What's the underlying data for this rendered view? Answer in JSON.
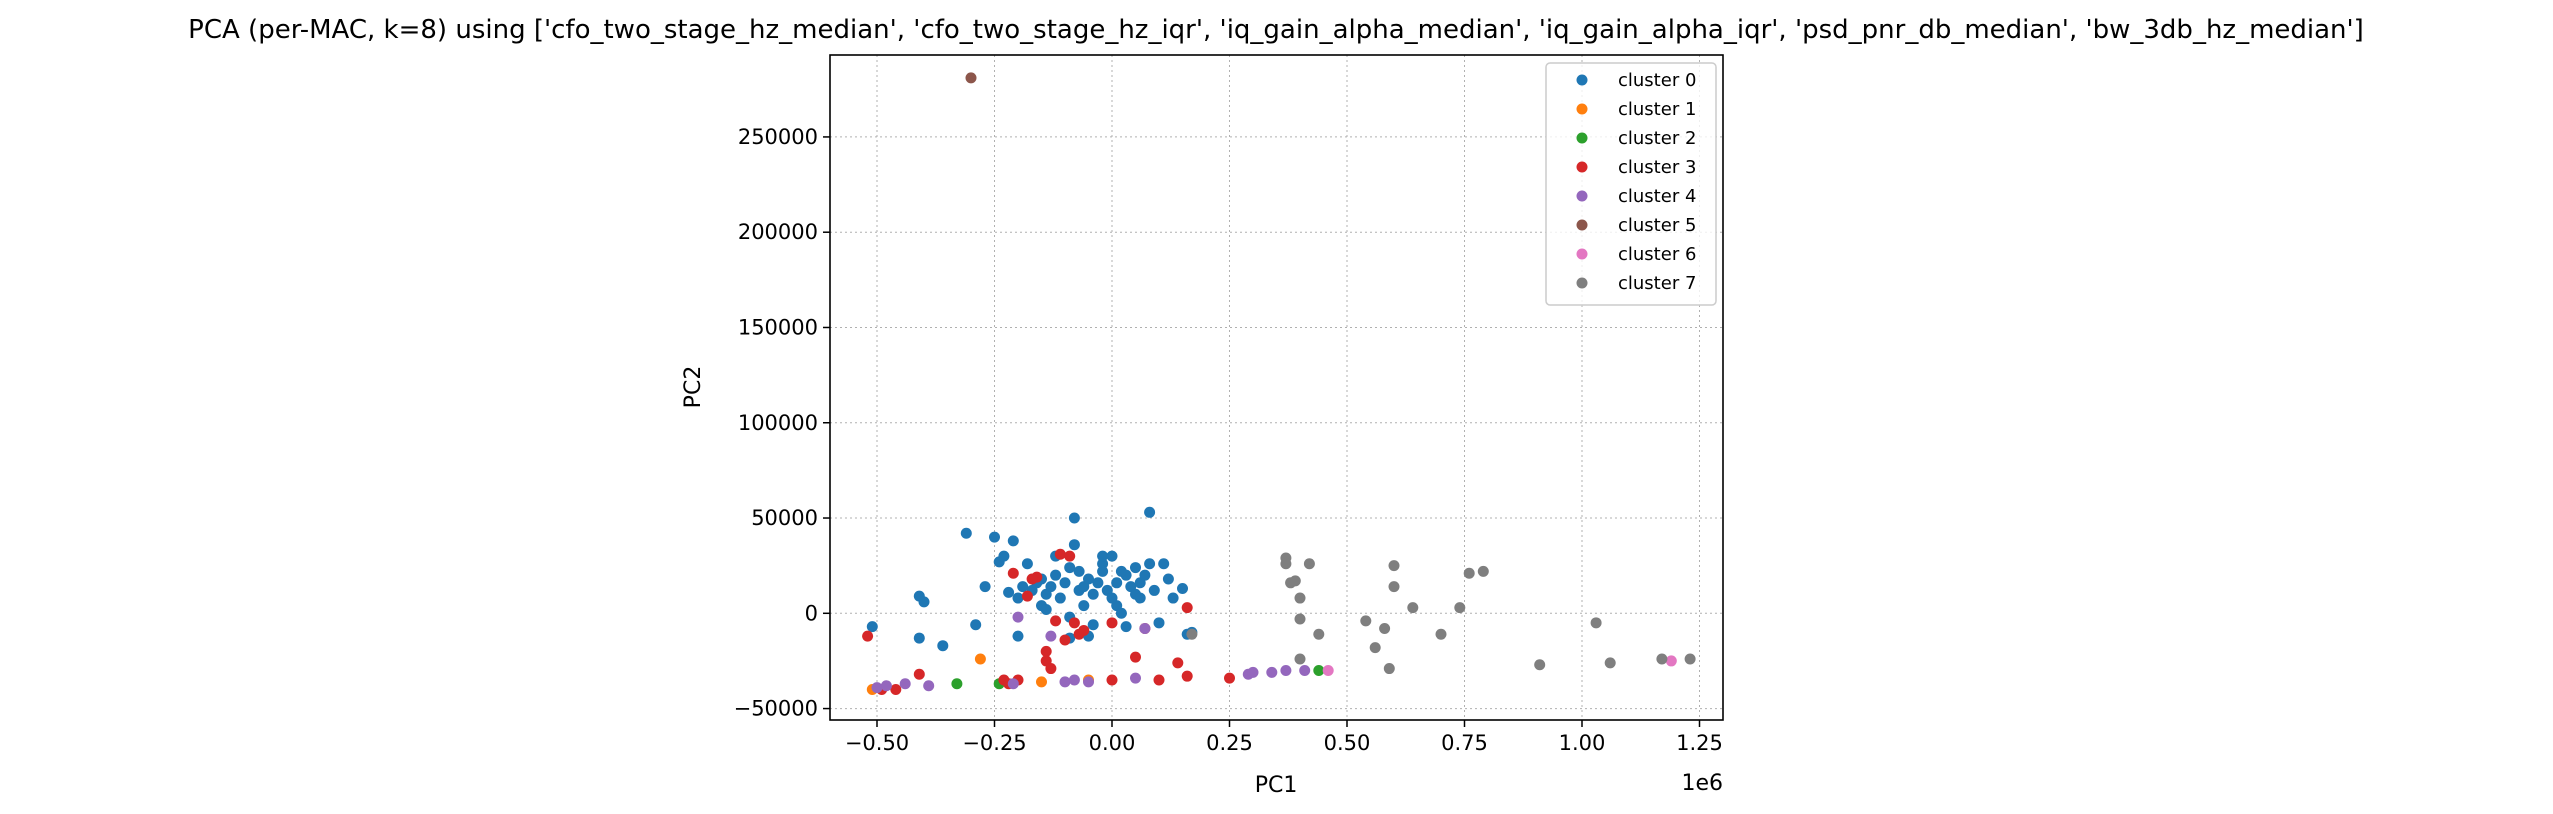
{
  "colors": {
    "cluster_0": "#1f77b4",
    "cluster_1": "#ff7f0e",
    "cluster_2": "#2ca02c",
    "cluster_3": "#d62728",
    "cluster_4": "#9467bd",
    "cluster_5": "#8c564b",
    "cluster_6": "#e377c2",
    "cluster_7": "#7f7f7f"
  },
  "chart_data": {
    "type": "scatter",
    "title": "PCA (per-MAC, k=8) using ['cfo_two_stage_hz_median', 'cfo_two_stage_hz_iqr', 'iq_gain_alpha_median', 'iq_gain_alpha_iqr', 'psd_pnr_db_median', 'bw_3db_hz_median']",
    "xlabel": "PC1",
    "ylabel": "PC2",
    "x_offset_text": "1e6",
    "xlim": [
      -0.6,
      1.3
    ],
    "ylim": [
      -56000,
      293000
    ],
    "xticks": [
      -0.5,
      -0.25,
      0.0,
      0.25,
      0.5,
      0.75,
      1.0,
      1.25
    ],
    "xtick_labels": [
      "−0.50",
      "−0.25",
      "0.00",
      "0.25",
      "0.50",
      "0.75",
      "1.00",
      "1.25"
    ],
    "yticks": [
      -50000,
      0,
      50000,
      100000,
      150000,
      200000,
      250000
    ],
    "ytick_labels": [
      "−50000",
      "0",
      "50000",
      "100000",
      "150000",
      "200000",
      "250000"
    ],
    "grid": true,
    "legend_position": "top-right",
    "series": [
      {
        "name": "cluster 0",
        "points": [
          [
            -0.51,
            -7000
          ],
          [
            -0.41,
            9000
          ],
          [
            -0.4,
            6000
          ],
          [
            -0.41,
            -13000
          ],
          [
            -0.36,
            -17000
          ],
          [
            -0.31,
            42000
          ],
          [
            -0.29,
            -6000
          ],
          [
            -0.27,
            14000
          ],
          [
            -0.25,
            40000
          ],
          [
            -0.24,
            27000
          ],
          [
            -0.23,
            30000
          ],
          [
            -0.22,
            11000
          ],
          [
            -0.21,
            38000
          ],
          [
            -0.2,
            8000
          ],
          [
            -0.19,
            14000
          ],
          [
            -0.18,
            26000
          ],
          [
            -0.17,
            12000
          ],
          [
            -0.16,
            16000
          ],
          [
            -0.15,
            18000
          ],
          [
            -0.15,
            4000
          ],
          [
            -0.14,
            10000
          ],
          [
            -0.13,
            14000
          ],
          [
            -0.12,
            30000
          ],
          [
            -0.12,
            20000
          ],
          [
            -0.11,
            8000
          ],
          [
            -0.1,
            16000
          ],
          [
            -0.09,
            24000
          ],
          [
            -0.09,
            -2000
          ],
          [
            -0.08,
            36000
          ],
          [
            -0.08,
            50000
          ],
          [
            -0.07,
            12000
          ],
          [
            -0.07,
            22000
          ],
          [
            -0.06,
            14000
          ],
          [
            -0.06,
            4000
          ],
          [
            -0.05,
            18000
          ],
          [
            -0.04,
            10000
          ],
          [
            -0.04,
            -6000
          ],
          [
            -0.03,
            16000
          ],
          [
            -0.02,
            26000
          ],
          [
            -0.02,
            22000
          ],
          [
            -0.01,
            12000
          ],
          [
            0.0,
            30000
          ],
          [
            0.01,
            16000
          ],
          [
            0.01,
            4000
          ],
          [
            0.02,
            0
          ],
          [
            0.03,
            20000
          ],
          [
            0.03,
            -7000
          ],
          [
            0.04,
            14000
          ],
          [
            0.05,
            24000
          ],
          [
            0.05,
            10000
          ],
          [
            0.06,
            16000
          ],
          [
            0.07,
            20000
          ],
          [
            0.08,
            53000
          ],
          [
            0.08,
            26000
          ],
          [
            0.09,
            12000
          ],
          [
            0.1,
            -5000
          ],
          [
            0.11,
            26000
          ],
          [
            0.12,
            18000
          ],
          [
            0.13,
            8000
          ],
          [
            0.15,
            13000
          ],
          [
            0.16,
            -11000
          ],
          [
            0.17,
            -10000
          ],
          [
            -0.09,
            -13000
          ],
          [
            -0.05,
            -12000
          ],
          [
            -0.02,
            30000
          ],
          [
            0.0,
            8000
          ],
          [
            0.02,
            22000
          ],
          [
            0.06,
            8000
          ],
          [
            -0.14,
            2000
          ],
          [
            -0.2,
            -12000
          ]
        ]
      },
      {
        "name": "cluster 1",
        "points": [
          [
            -0.51,
            -40000
          ],
          [
            -0.28,
            -24000
          ],
          [
            -0.15,
            -36000
          ],
          [
            -0.05,
            -35000
          ]
        ]
      },
      {
        "name": "cluster 2",
        "points": [
          [
            -0.33,
            -37000
          ],
          [
            -0.24,
            -37000
          ],
          [
            0.44,
            -30000
          ]
        ]
      },
      {
        "name": "cluster 3",
        "points": [
          [
            -0.52,
            -12000
          ],
          [
            -0.49,
            -40000
          ],
          [
            -0.46,
            -40000
          ],
          [
            -0.41,
            -32000
          ],
          [
            -0.23,
            -35000
          ],
          [
            -0.22,
            -37000
          ],
          [
            -0.21,
            21000
          ],
          [
            -0.2,
            -35000
          ],
          [
            -0.18,
            9000
          ],
          [
            -0.16,
            19000
          ],
          [
            -0.14,
            -20000
          ],
          [
            -0.14,
            -25000
          ],
          [
            -0.13,
            -29000
          ],
          [
            -0.12,
            -4000
          ],
          [
            -0.11,
            31000
          ],
          [
            -0.1,
            -14000
          ],
          [
            -0.09,
            30000
          ],
          [
            -0.08,
            -5000
          ],
          [
            -0.07,
            -11000
          ],
          [
            -0.06,
            -9000
          ],
          [
            0.0,
            -35000
          ],
          [
            0.0,
            -5000
          ],
          [
            0.05,
            -23000
          ],
          [
            0.07,
            -8000
          ],
          [
            0.1,
            -35000
          ],
          [
            0.14,
            -26000
          ],
          [
            0.16,
            3000
          ],
          [
            0.16,
            -33000
          ],
          [
            0.25,
            -34000
          ],
          [
            -0.17,
            18000
          ]
        ]
      },
      {
        "name": "cluster 4",
        "points": [
          [
            -0.5,
            -39000
          ],
          [
            -0.48,
            -38000
          ],
          [
            -0.44,
            -37000
          ],
          [
            -0.39,
            -38000
          ],
          [
            -0.21,
            -37000
          ],
          [
            -0.2,
            -2000
          ],
          [
            -0.13,
            -12000
          ],
          [
            -0.1,
            -36000
          ],
          [
            -0.08,
            -35000
          ],
          [
            -0.05,
            -36000
          ],
          [
            0.05,
            -34000
          ],
          [
            0.07,
            -8000
          ],
          [
            0.29,
            -32000
          ],
          [
            0.3,
            -31000
          ],
          [
            0.34,
            -31000
          ],
          [
            0.37,
            -30000
          ],
          [
            0.41,
            -30000
          ]
        ]
      },
      {
        "name": "cluster 5",
        "points": [
          [
            -0.3,
            281000
          ]
        ]
      },
      {
        "name": "cluster 6",
        "points": [
          [
            0.46,
            -30000
          ],
          [
            1.19,
            -25000
          ]
        ]
      },
      {
        "name": "cluster 7",
        "points": [
          [
            0.37,
            29000
          ],
          [
            0.37,
            26000
          ],
          [
            0.38,
            16000
          ],
          [
            0.39,
            17000
          ],
          [
            0.4,
            8000
          ],
          [
            0.4,
            -3000
          ],
          [
            0.4,
            -24000
          ],
          [
            0.42,
            26000
          ],
          [
            0.44,
            -11000
          ],
          [
            0.54,
            -4000
          ],
          [
            0.56,
            -18000
          ],
          [
            0.58,
            -8000
          ],
          [
            0.59,
            -29000
          ],
          [
            0.6,
            14000
          ],
          [
            0.6,
            25000
          ],
          [
            0.64,
            3000
          ],
          [
            0.7,
            -11000
          ],
          [
            0.74,
            3000
          ],
          [
            0.76,
            21000
          ],
          [
            0.79,
            22000
          ],
          [
            0.91,
            -27000
          ],
          [
            1.03,
            -5000
          ],
          [
            1.06,
            -26000
          ],
          [
            1.17,
            -24000
          ],
          [
            1.23,
            -24000
          ],
          [
            0.17,
            -11000
          ]
        ]
      }
    ]
  }
}
